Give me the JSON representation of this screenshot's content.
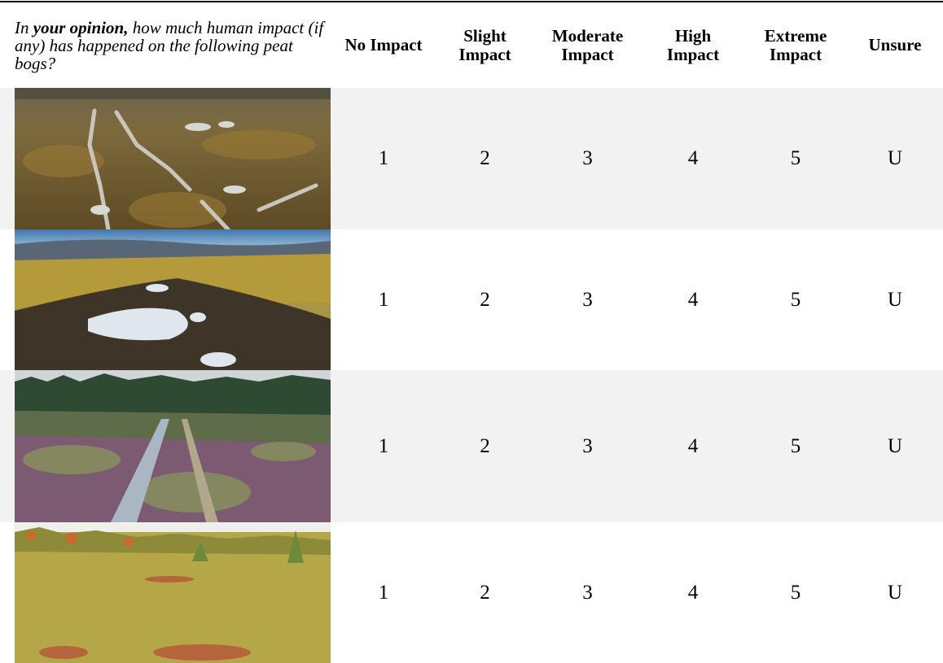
{
  "header": {
    "question": {
      "prefix": "In",
      "emphasis": "your opinion,",
      "rest": "how much human impact (if any) has happened on the following peat bogs?"
    },
    "columns": [
      "No Impact",
      "Slight Impact",
      "Moderate Impact",
      "High Impact",
      "Extreme Impact",
      "Unsure"
    ]
  },
  "rows": [
    [
      1,
      2,
      3,
      4,
      5,
      "U"
    ],
    [
      1,
      2,
      3,
      4,
      5,
      "U"
    ],
    [
      1,
      2,
      3,
      4,
      5,
      "U"
    ],
    [
      1,
      2,
      3,
      4,
      5,
      "U"
    ]
  ]
}
